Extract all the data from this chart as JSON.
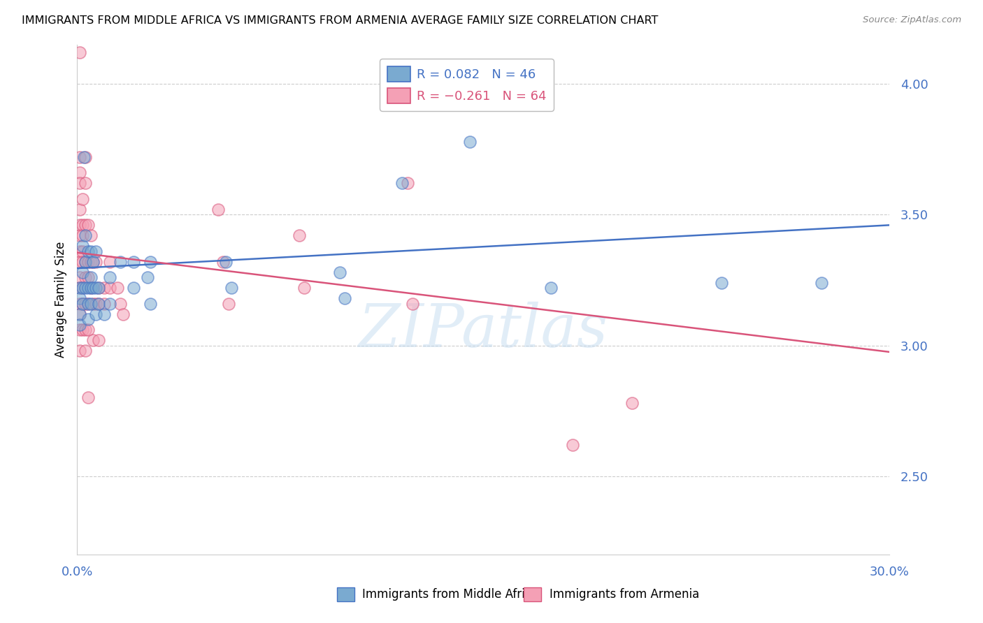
{
  "title": "IMMIGRANTS FROM MIDDLE AFRICA VS IMMIGRANTS FROM ARMENIA AVERAGE FAMILY SIZE CORRELATION CHART",
  "source": "Source: ZipAtlas.com",
  "ylabel": "Average Family Size",
  "yticks": [
    2.5,
    3.0,
    3.5,
    4.0
  ],
  "xlim": [
    0.0,
    0.3
  ],
  "ylim": [
    2.2,
    4.15
  ],
  "legend_entries": [
    {
      "label_r": "R = 0.082",
      "label_n": "N = 46",
      "color": "#7AAAD0",
      "edge": "#4472C4"
    },
    {
      "label_r": "R = -0.261",
      "label_n": "N = 64",
      "color": "#F4A0B5",
      "edge": "#E07090"
    }
  ],
  "blue_scatter": [
    [
      0.001,
      3.22
    ],
    [
      0.001,
      3.18
    ],
    [
      0.001,
      3.12
    ],
    [
      0.001,
      3.08
    ],
    [
      0.002,
      3.38
    ],
    [
      0.002,
      3.28
    ],
    [
      0.002,
      3.22
    ],
    [
      0.002,
      3.16
    ],
    [
      0.0025,
      3.72
    ],
    [
      0.003,
      3.42
    ],
    [
      0.003,
      3.32
    ],
    [
      0.003,
      3.22
    ],
    [
      0.004,
      3.36
    ],
    [
      0.004,
      3.22
    ],
    [
      0.004,
      3.16
    ],
    [
      0.004,
      3.1
    ],
    [
      0.005,
      3.36
    ],
    [
      0.005,
      3.26
    ],
    [
      0.005,
      3.22
    ],
    [
      0.005,
      3.16
    ],
    [
      0.006,
      3.32
    ],
    [
      0.006,
      3.22
    ],
    [
      0.007,
      3.36
    ],
    [
      0.007,
      3.22
    ],
    [
      0.007,
      3.12
    ],
    [
      0.008,
      3.22
    ],
    [
      0.008,
      3.16
    ],
    [
      0.01,
      3.12
    ],
    [
      0.012,
      3.26
    ],
    [
      0.012,
      3.16
    ],
    [
      0.016,
      3.32
    ],
    [
      0.021,
      3.32
    ],
    [
      0.021,
      3.22
    ],
    [
      0.026,
      3.26
    ],
    [
      0.027,
      3.32
    ],
    [
      0.027,
      3.16
    ],
    [
      0.055,
      3.32
    ],
    [
      0.057,
      3.22
    ],
    [
      0.097,
      3.28
    ],
    [
      0.099,
      3.18
    ],
    [
      0.118,
      3.92
    ],
    [
      0.12,
      3.62
    ],
    [
      0.145,
      3.78
    ],
    [
      0.175,
      3.22
    ],
    [
      0.238,
      3.24
    ],
    [
      0.275,
      3.24
    ]
  ],
  "pink_scatter": [
    [
      0.001,
      4.12
    ],
    [
      0.001,
      3.72
    ],
    [
      0.001,
      3.66
    ],
    [
      0.001,
      3.62
    ],
    [
      0.001,
      3.52
    ],
    [
      0.001,
      3.46
    ],
    [
      0.001,
      3.42
    ],
    [
      0.001,
      3.36
    ],
    [
      0.001,
      3.32
    ],
    [
      0.001,
      3.26
    ],
    [
      0.001,
      3.22
    ],
    [
      0.001,
      3.16
    ],
    [
      0.001,
      3.12
    ],
    [
      0.001,
      3.06
    ],
    [
      0.001,
      2.98
    ],
    [
      0.002,
      3.56
    ],
    [
      0.002,
      3.46
    ],
    [
      0.002,
      3.42
    ],
    [
      0.002,
      3.36
    ],
    [
      0.002,
      3.32
    ],
    [
      0.002,
      3.22
    ],
    [
      0.002,
      3.16
    ],
    [
      0.002,
      3.06
    ],
    [
      0.003,
      3.72
    ],
    [
      0.003,
      3.62
    ],
    [
      0.003,
      3.46
    ],
    [
      0.003,
      3.32
    ],
    [
      0.003,
      3.26
    ],
    [
      0.003,
      3.16
    ],
    [
      0.003,
      3.06
    ],
    [
      0.003,
      2.98
    ],
    [
      0.004,
      3.46
    ],
    [
      0.004,
      3.32
    ],
    [
      0.004,
      3.26
    ],
    [
      0.004,
      3.16
    ],
    [
      0.004,
      3.06
    ],
    [
      0.004,
      2.8
    ],
    [
      0.005,
      3.42
    ],
    [
      0.005,
      3.32
    ],
    [
      0.005,
      3.22
    ],
    [
      0.006,
      3.32
    ],
    [
      0.006,
      3.16
    ],
    [
      0.006,
      3.02
    ],
    [
      0.007,
      3.32
    ],
    [
      0.007,
      3.16
    ],
    [
      0.008,
      3.22
    ],
    [
      0.008,
      3.16
    ],
    [
      0.008,
      3.02
    ],
    [
      0.01,
      3.22
    ],
    [
      0.01,
      3.16
    ],
    [
      0.012,
      3.32
    ],
    [
      0.012,
      3.22
    ],
    [
      0.015,
      3.22
    ],
    [
      0.016,
      3.16
    ],
    [
      0.017,
      3.12
    ],
    [
      0.052,
      3.52
    ],
    [
      0.054,
      3.32
    ],
    [
      0.056,
      3.16
    ],
    [
      0.082,
      3.42
    ],
    [
      0.084,
      3.22
    ],
    [
      0.122,
      3.62
    ],
    [
      0.124,
      3.16
    ],
    [
      0.183,
      2.62
    ],
    [
      0.205,
      2.78
    ]
  ],
  "blue_line": [
    [
      0.0,
      3.295
    ],
    [
      0.3,
      3.46
    ]
  ],
  "pink_line": [
    [
      0.0,
      3.355
    ],
    [
      0.3,
      2.975
    ]
  ],
  "blue_color": "#7AAAD0",
  "pink_color": "#F4A0B5",
  "blue_line_color": "#4472C4",
  "pink_line_color": "#D9547A",
  "axis_color": "#4472C4",
  "watermark": "ZIPatlas",
  "background_color": "#FFFFFF",
  "grid_color": "#CCCCCC",
  "title_fontsize": 11.5,
  "tick_fontsize": 13,
  "ylabel_fontsize": 12,
  "scatter_size": 150,
  "scatter_alpha": 0.55,
  "scatter_linewidth": 1.2,
  "line_width": 1.8
}
